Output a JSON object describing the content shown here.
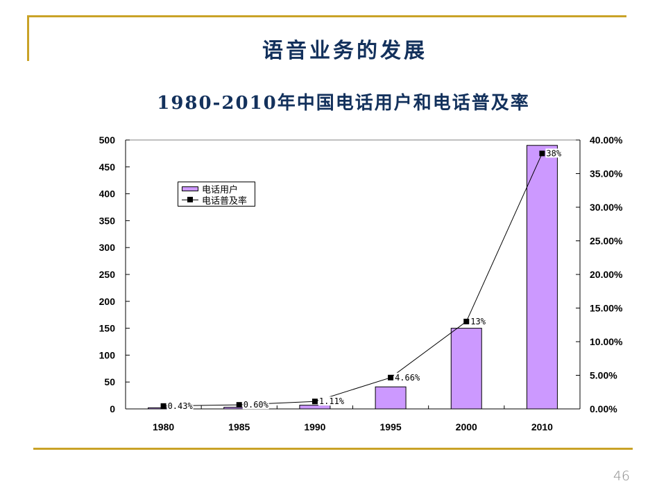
{
  "slide": {
    "title": "语音业务的发展",
    "page_number": "46"
  },
  "colors": {
    "accent_line": "#c9a227",
    "title_text": "#13315c",
    "bar_fill": "#cc99ff",
    "bar_stroke": "#000000",
    "line_stroke": "#000000",
    "plot_top_border": "#808080"
  },
  "chart_data": {
    "type": "bar+line",
    "title": "1980-2010年中国电话用户和电话普及率",
    "xlabel": "",
    "ylabel": "",
    "ylabel_right": "",
    "grid": false,
    "legend_position": "inside upper-left",
    "categories": [
      "1980",
      "1985",
      "1990",
      "1995",
      "2000",
      "2010"
    ],
    "series": [
      {
        "name": "电话用户",
        "type": "bar",
        "axis": "left",
        "values": [
          2.1,
          3.1,
          6.9,
          41,
          150,
          490
        ]
      },
      {
        "name": "电话普及率",
        "type": "line",
        "axis": "right",
        "unit": "%",
        "values": [
          0.43,
          0.6,
          1.11,
          4.66,
          13,
          38
        ],
        "labels": [
          "0.43%",
          "0.60%",
          "1.11%",
          "4.66%",
          "13%",
          "38%"
        ]
      }
    ],
    "y_left": {
      "min": 0,
      "max": 500,
      "step": 50,
      "ticks": [
        "0",
        "50",
        "100",
        "150",
        "200",
        "250",
        "300",
        "350",
        "400",
        "450",
        "500"
      ]
    },
    "y_right": {
      "min": 0,
      "max": 40,
      "step": 5,
      "ticks": [
        "0.00%",
        "5.00%",
        "10.00%",
        "15.00%",
        "20.00%",
        "25.00%",
        "30.00%",
        "35.00%",
        "40.00%"
      ]
    }
  }
}
